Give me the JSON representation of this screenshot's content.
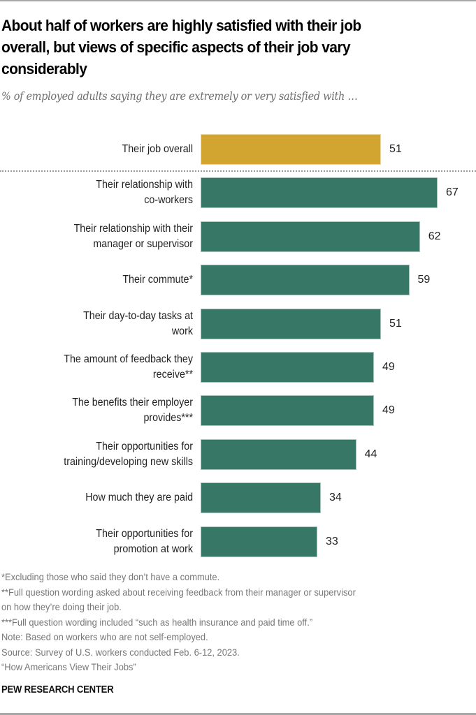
{
  "header": {
    "title_lines": [
      "About half of workers are highly satisfied with their job",
      "overall, but views of specific aspects of their job vary",
      "considerably"
    ],
    "subtitle": "% of employed adults saying they are extremely or very satisfied with …"
  },
  "colors": {
    "highlight": "#D1A530",
    "primary": "#377766",
    "divider": "#9A9A9A"
  },
  "chart_data": {
    "type": "bar",
    "orientation": "horizontal",
    "title": "About half of workers are highly satisfied with their job overall, but views of specific aspects of their job vary considerably",
    "subtitle": "% of employed adults saying they are extremely or very satisfied with …",
    "xlabel": "",
    "ylabel": "",
    "xlim": [
      0,
      100
    ],
    "grid": false,
    "legend": "none",
    "categories": [
      [
        "Their job overall"
      ],
      [
        "Their relationship with",
        "co-workers"
      ],
      [
        "Their relationship with their",
        "manager or supervisor"
      ],
      [
        "Their commute*"
      ],
      [
        "Their day-to-day tasks at",
        "work"
      ],
      [
        "The amount of feedback they",
        "receive**"
      ],
      [
        "The benefits their employer",
        "provides***"
      ],
      [
        "Their opportunities for",
        "training/developing new skills"
      ],
      [
        "How much they are paid"
      ],
      [
        "Their opportunities for",
        "promotion at work"
      ]
    ],
    "values": [
      51,
      67,
      62,
      59,
      51,
      49,
      49,
      44,
      34,
      33
    ],
    "highlighted_index": 0,
    "separator_after_index": 0
  },
  "notes": [
    "*Excluding those who said they don’t have a commute.",
    "**Full question wording asked about receiving feedback from their manager or supervisor",
    "on how they’re doing their job.",
    "***Full question wording included “such as health insurance and paid time off.”",
    "Note: Based on workers who are not self-employed.",
    "Source: Survey of U.S. workers conducted Feb. 6-12, 2023.",
    "“How Americans View Their Jobs”"
  ],
  "brand": "PEW RESEARCH CENTER"
}
